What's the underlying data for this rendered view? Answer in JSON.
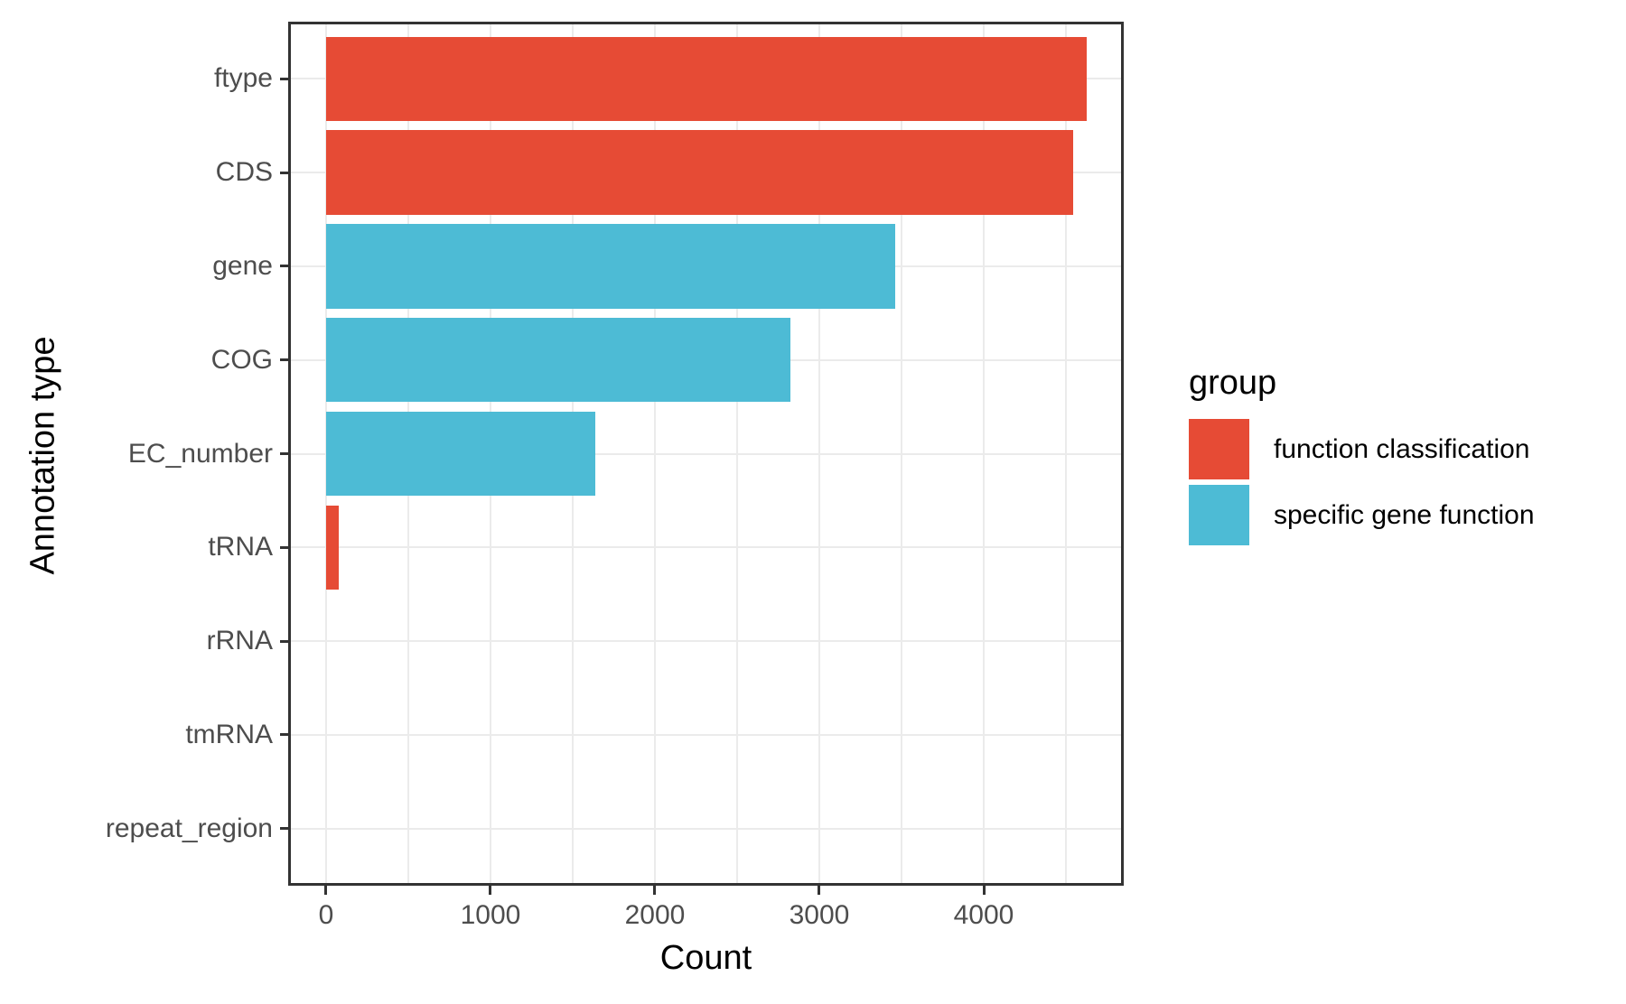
{
  "chart_data": {
    "type": "bar",
    "orientation": "horizontal",
    "title": "",
    "xlabel": "Count",
    "ylabel": "Annotation type",
    "categories": [
      "ftype",
      "CDS",
      "gene",
      "COG",
      "EC_number",
      "tRNA",
      "rRNA",
      "tmRNA",
      "repeat_region"
    ],
    "values": [
      4626,
      4544,
      3462,
      2824,
      1637,
      77,
      0,
      0,
      0
    ],
    "groups": [
      "function classification",
      "function classification",
      "specific gene function",
      "specific gene function",
      "specific gene function",
      "function classification",
      "function classification",
      "function classification",
      "function classification"
    ],
    "group_colors": {
      "function classification": "#E64B35",
      "specific gene function": "#4DBBD5"
    },
    "x_ticks": [
      0,
      1000,
      2000,
      3000,
      4000
    ],
    "x_tick_labels": [
      "0",
      "1000",
      "2000",
      "3000",
      "4000"
    ],
    "x_minor_ticks": [
      500,
      1500,
      2500,
      3500,
      4500
    ],
    "xlim": [
      -225,
      4846
    ],
    "bar_width_fraction": 0.9,
    "grid": "vertical major+minor, horizontal major at category centers",
    "legend_position": "right",
    "panel_border_color": "#333333",
    "gridline_color": "#ebebeb",
    "tick_label_color": "#4d4d4d",
    "axis_title_color": "#000000"
  },
  "legend": {
    "title": "group",
    "items": [
      {
        "label": "function classification",
        "color": "#E64B35"
      },
      {
        "label": "specific gene function",
        "color": "#4DBBD5"
      }
    ]
  },
  "axes": {
    "x_title": "Count",
    "y_title": "Annotation type"
  }
}
